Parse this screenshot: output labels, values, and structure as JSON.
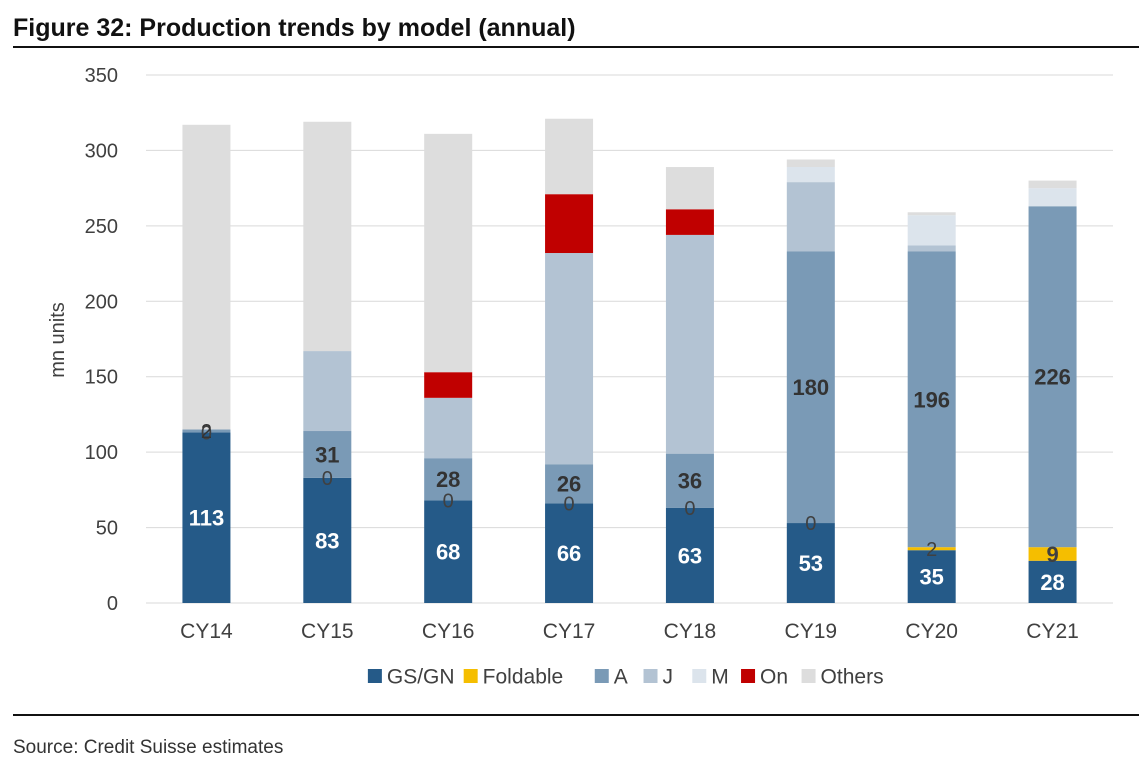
{
  "figure": {
    "title": "Figure 32: Production trends by model (annual)",
    "source": "Source: Credit Suisse estimates"
  },
  "colors": {
    "GS/GN": "#255a88",
    "Foldable": "#f5be00",
    "A": "#7a9ab6",
    "J": "#b3c3d3",
    "M": "#dce4ec",
    "On": "#c00000",
    "Others": "#dddddd",
    "grid": "#d9d9d9",
    "axis_text": "#404040"
  },
  "chart_data": {
    "type": "bar",
    "stacked": true,
    "title": "",
    "xlabel": "",
    "ylabel": "mn units",
    "ylim": [
      0,
      350
    ],
    "yticks": [
      0,
      50,
      100,
      150,
      200,
      250,
      300,
      350
    ],
    "grid": true,
    "legend_position": "bottom",
    "categories": [
      "CY14",
      "CY15",
      "CY16",
      "CY17",
      "CY18",
      "CY19",
      "CY20",
      "CY21"
    ],
    "series": [
      {
        "name": "GS/GN",
        "values": [
          113,
          83,
          68,
          66,
          63,
          53,
          35,
          28
        ],
        "labels": [
          "113",
          "83",
          "68",
          "66",
          "63",
          "53",
          "35",
          "28"
        ],
        "label_color": "#ffffff"
      },
      {
        "name": "Foldable",
        "values": [
          0,
          0,
          0,
          0,
          0,
          0,
          2,
          9
        ],
        "labels": [
          "0",
          "0",
          "0",
          "0",
          "0",
          "0",
          "2",
          "9"
        ],
        "label_color": "#404040"
      },
      {
        "name": "A",
        "values": [
          2,
          31,
          28,
          26,
          36,
          180,
          196,
          226
        ],
        "labels": [
          "2",
          "31",
          "28",
          "26",
          "36",
          "180",
          "196",
          "226"
        ],
        "label_color": "#333333"
      },
      {
        "name": "J",
        "values": [
          0,
          53,
          40,
          140,
          145,
          46,
          4,
          0
        ]
      },
      {
        "name": "M",
        "values": [
          0,
          0,
          0,
          0,
          0,
          10,
          20,
          12
        ]
      },
      {
        "name": "On",
        "values": [
          0,
          0,
          17,
          39,
          17,
          0,
          0,
          0
        ]
      },
      {
        "name": "Others",
        "values": [
          202,
          152,
          158,
          50,
          28,
          5,
          2,
          5
        ]
      }
    ],
    "legend": [
      "GS/GN",
      "Foldable",
      "A",
      "J",
      "M",
      "On",
      "Others"
    ]
  }
}
